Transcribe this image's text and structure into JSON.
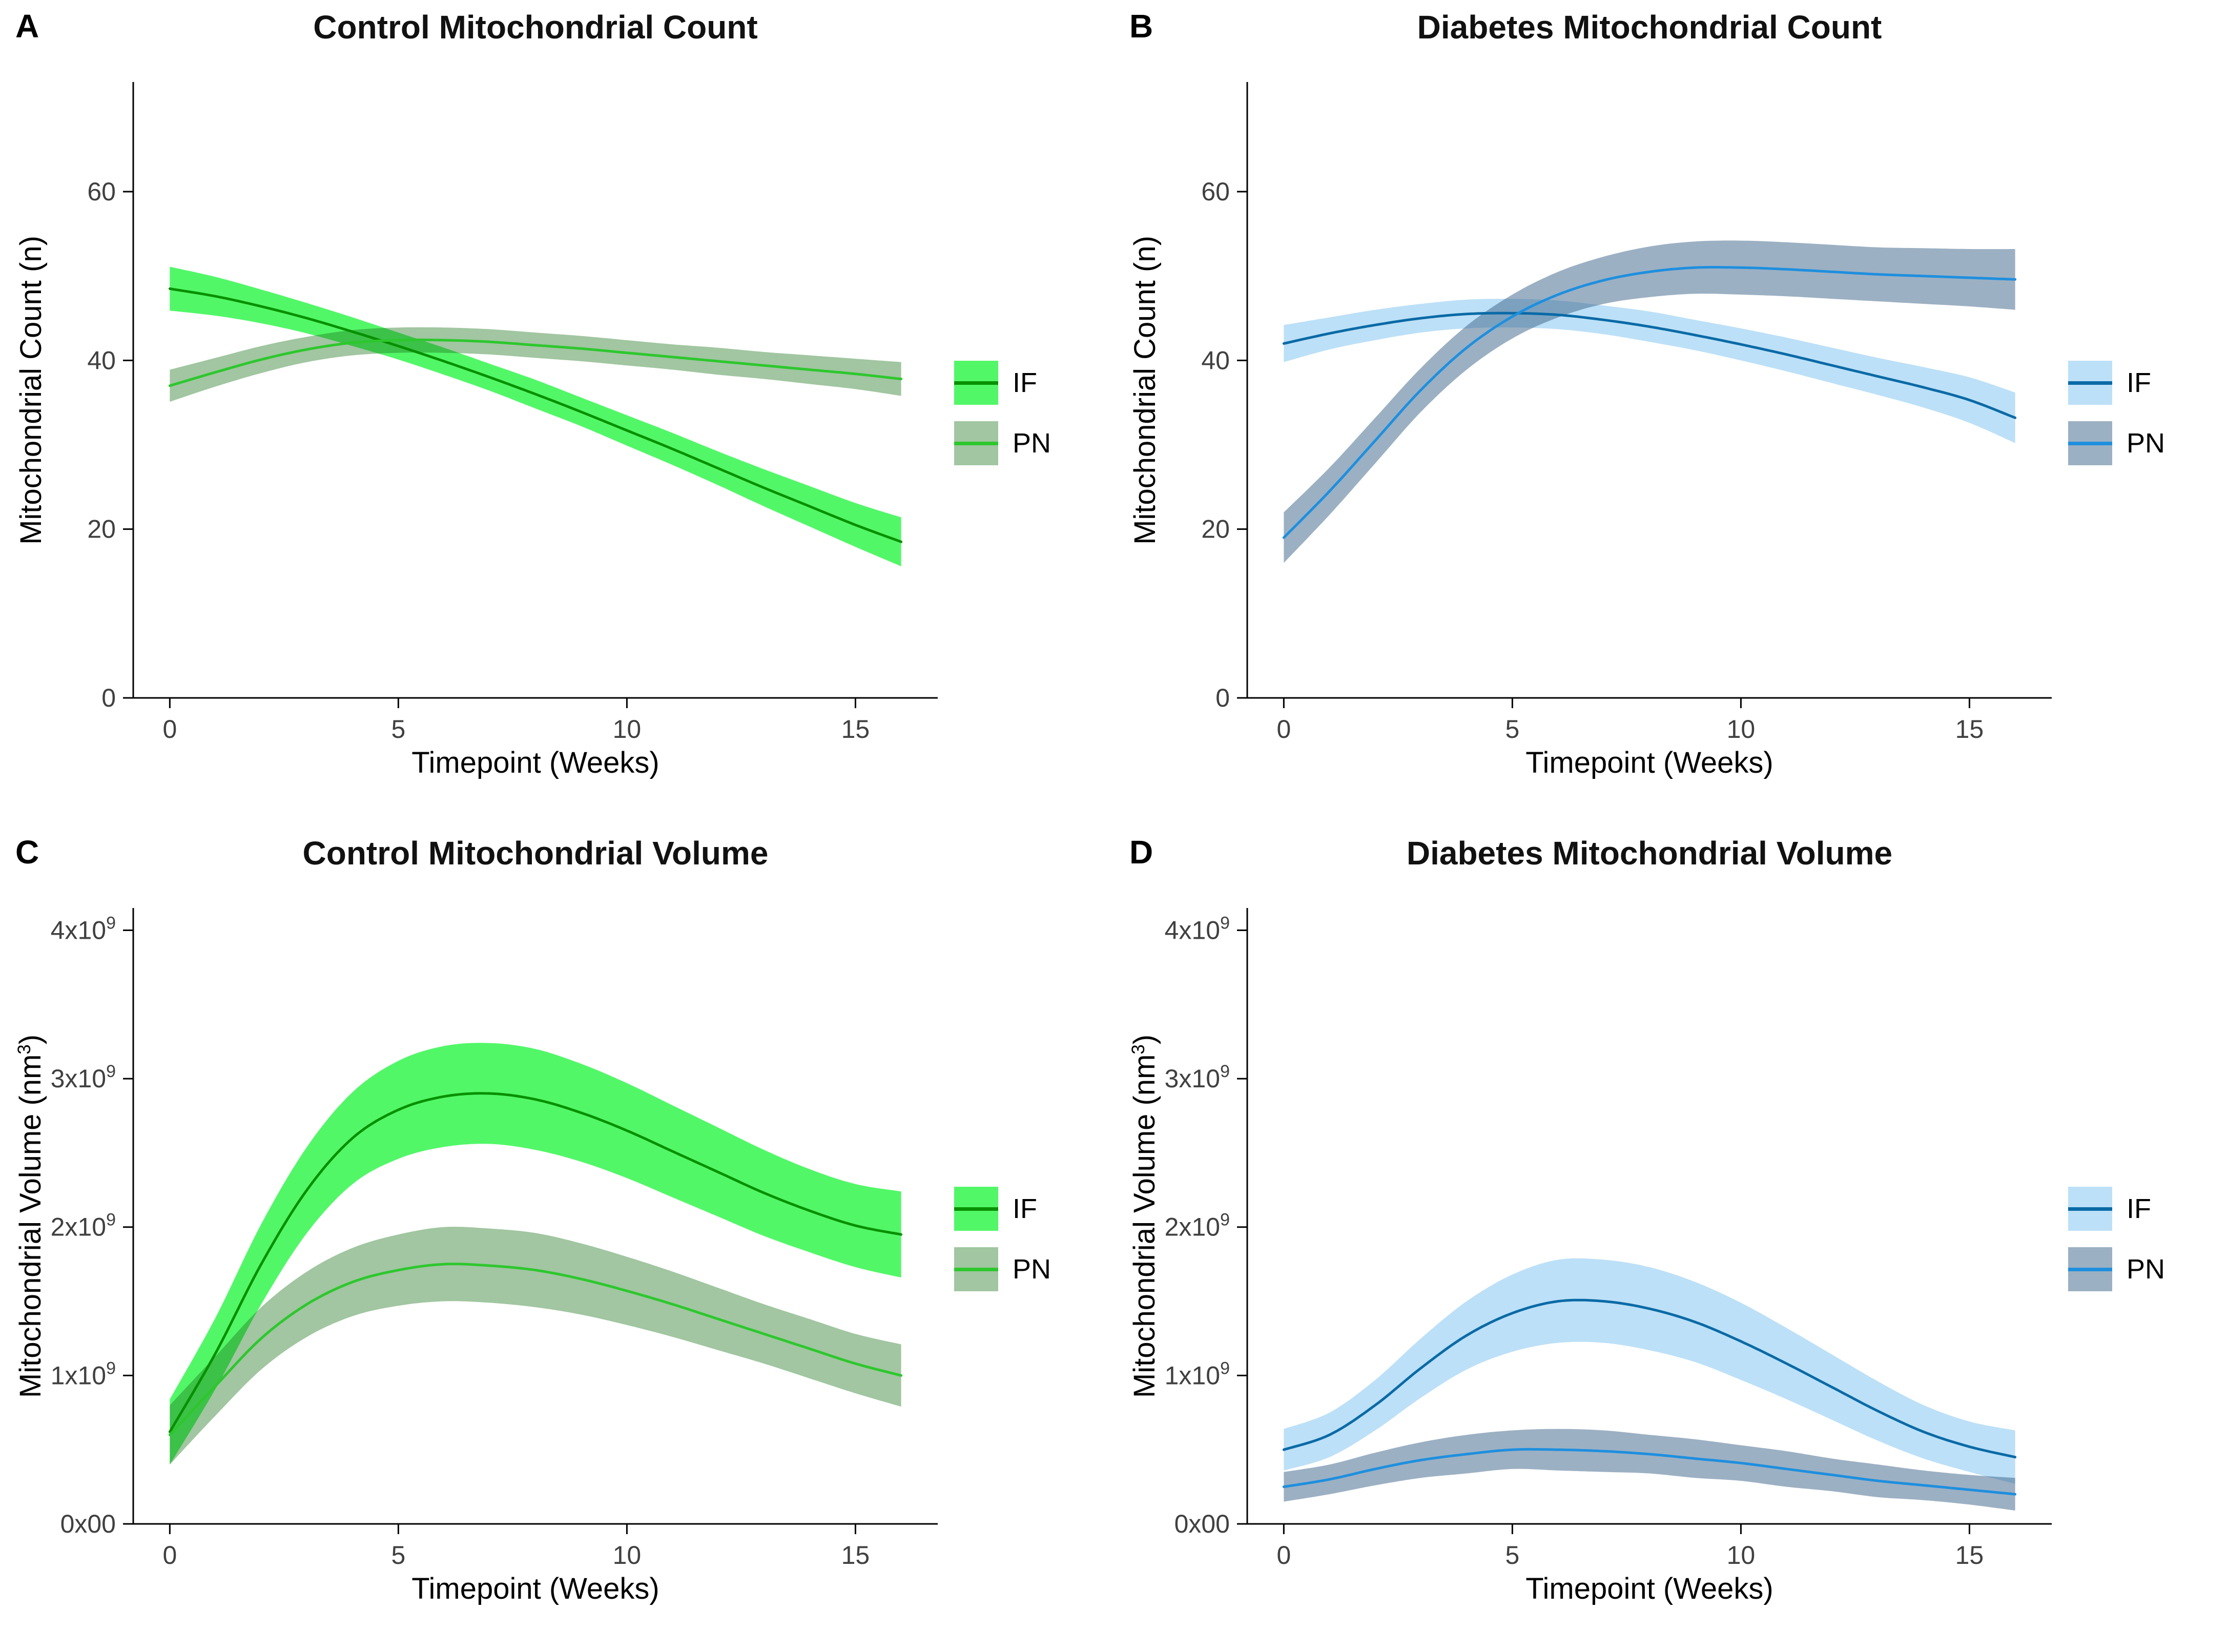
{
  "chart_data": [
    {
      "letter": "A",
      "title": "Control Mitochondrial Count",
      "type": "line",
      "xlabel": "Timepoint (Weeks)",
      "ylabel": {
        "pre": "Mitochondrial Count (n)",
        "sup": "",
        "post": ""
      },
      "xlim": [
        -0.8,
        16.8
      ],
      "ylim": [
        0,
        73
      ],
      "xticks": {
        "values": [
          0,
          5,
          10,
          15
        ],
        "labels": [
          "0",
          "5",
          "10",
          "15"
        ]
      },
      "yticks": {
        "values": [
          0,
          20,
          40,
          60
        ],
        "labels": [
          "0",
          "20",
          "40",
          "60"
        ]
      },
      "x": [
        0,
        1,
        2,
        3,
        4,
        5,
        6,
        7,
        8,
        9,
        10,
        11,
        12,
        13,
        14,
        15,
        16
      ],
      "series": [
        {
          "name": "IF",
          "line_color": "#089000",
          "band_color": "#52F768",
          "band_opacity": 1,
          "mean": [
            48.5,
            47.6,
            46.4,
            45.0,
            43.4,
            41.7,
            39.9,
            38.0,
            36.0,
            33.9,
            31.7,
            29.5,
            27.2,
            24.9,
            22.7,
            20.5,
            18.5
          ],
          "band": [
            2.6,
            2.3,
            2.0,
            1.8,
            1.7,
            1.6,
            1.6,
            1.6,
            1.7,
            1.7,
            1.8,
            1.9,
            2.0,
            2.2,
            2.4,
            2.6,
            2.9
          ]
        },
        {
          "name": "PN",
          "line_color": "#2DC72D",
          "band_color": "#1E781E",
          "band_opacity": 0.42,
          "mean": [
            37.0,
            38.6,
            40.1,
            41.3,
            42.1,
            42.4,
            42.4,
            42.2,
            41.8,
            41.4,
            40.9,
            40.4,
            39.9,
            39.4,
            38.9,
            38.4,
            37.8
          ],
          "band": [
            1.9,
            1.7,
            1.6,
            1.5,
            1.5,
            1.5,
            1.5,
            1.5,
            1.5,
            1.5,
            1.5,
            1.5,
            1.6,
            1.6,
            1.7,
            1.8,
            2.0
          ]
        }
      ]
    },
    {
      "letter": "B",
      "title": "Diabetes Mitochondrial Count",
      "type": "line",
      "xlabel": "Timepoint (Weeks)",
      "ylabel": {
        "pre": "Mitochondrial Count (n)",
        "sup": "",
        "post": ""
      },
      "xlim": [
        -0.8,
        16.8
      ],
      "ylim": [
        0,
        73
      ],
      "xticks": {
        "values": [
          0,
          5,
          10,
          15
        ],
        "labels": [
          "0",
          "5",
          "10",
          "15"
        ]
      },
      "yticks": {
        "values": [
          0,
          20,
          40,
          60
        ],
        "labels": [
          "0",
          "20",
          "40",
          "60"
        ]
      },
      "x": [
        0,
        1,
        2,
        3,
        4,
        5,
        6,
        7,
        8,
        9,
        10,
        11,
        12,
        13,
        14,
        15,
        16
      ],
      "series": [
        {
          "name": "IF",
          "line_color": "#0A6AA6",
          "band_color": "#BCE0F7",
          "band_opacity": 1,
          "mean": [
            42.0,
            43.2,
            44.2,
            45.0,
            45.5,
            45.6,
            45.4,
            44.8,
            44.0,
            43.0,
            41.9,
            40.7,
            39.4,
            38.1,
            36.8,
            35.3,
            33.2
          ],
          "band": [
            2.2,
            1.9,
            1.8,
            1.7,
            1.7,
            1.7,
            1.7,
            1.7,
            1.8,
            1.8,
            1.9,
            2.0,
            2.1,
            2.2,
            2.4,
            2.7,
            3.0
          ]
        },
        {
          "name": "PN",
          "line_color": "#1E8FDE",
          "band_color": "#3A6287",
          "band_opacity": 0.5,
          "mean": [
            19.0,
            24.5,
            30.5,
            36.5,
            41.5,
            45.2,
            47.8,
            49.5,
            50.5,
            51.0,
            51.0,
            50.8,
            50.5,
            50.2,
            50.0,
            49.8,
            49.6
          ],
          "band": [
            3.0,
            2.8,
            2.7,
            2.6,
            2.6,
            2.6,
            2.7,
            2.8,
            3.0,
            3.1,
            3.2,
            3.2,
            3.2,
            3.2,
            3.3,
            3.4,
            3.6
          ]
        }
      ]
    },
    {
      "letter": "C",
      "title": "Control Mitochondrial Volume",
      "type": "line",
      "xlabel": "Timepoint (Weeks)",
      "ylabel": {
        "pre": "Mitochondrial Volume (nm",
        "sup": "3",
        "post": ")"
      },
      "y_unit": "1e9 nm^3",
      "xlim": [
        -0.8,
        16.8
      ],
      "ylim": [
        0,
        4.15
      ],
      "xticks": {
        "values": [
          0,
          5,
          10,
          15
        ],
        "labels": [
          "0",
          "5",
          "10",
          "15"
        ]
      },
      "yticks": {
        "values": [
          0,
          1,
          2,
          3,
          4
        ],
        "labels": [
          "0x00",
          "1x10^9",
          "2x10^9",
          "3x10^9",
          "4x10^9"
        ]
      },
      "x": [
        0,
        1,
        2,
        3,
        4,
        5,
        6,
        7,
        8,
        9,
        10,
        11,
        12,
        13,
        14,
        15,
        16
      ],
      "series": [
        {
          "name": "IF",
          "line_color": "#089000",
          "band_color": "#52F768",
          "band_opacity": 1,
          "mean": [
            0.62,
            1.15,
            1.75,
            2.25,
            2.6,
            2.79,
            2.88,
            2.9,
            2.86,
            2.77,
            2.65,
            2.51,
            2.37,
            2.23,
            2.11,
            2.01,
            1.95
          ],
          "band": [
            0.22,
            0.24,
            0.27,
            0.29,
            0.31,
            0.33,
            0.34,
            0.34,
            0.34,
            0.33,
            0.32,
            0.31,
            0.3,
            0.29,
            0.28,
            0.28,
            0.29
          ]
        },
        {
          "name": "PN",
          "line_color": "#2DC72D",
          "band_color": "#1E781E",
          "band_opacity": 0.42,
          "mean": [
            0.6,
            0.93,
            1.25,
            1.48,
            1.63,
            1.71,
            1.75,
            1.74,
            1.71,
            1.65,
            1.57,
            1.48,
            1.38,
            1.28,
            1.18,
            1.08,
            1.0
          ],
          "band": [
            0.2,
            0.2,
            0.21,
            0.22,
            0.23,
            0.24,
            0.25,
            0.25,
            0.25,
            0.24,
            0.23,
            0.22,
            0.21,
            0.2,
            0.2,
            0.2,
            0.21
          ]
        }
      ]
    },
    {
      "letter": "D",
      "title": "Diabetes Mitochondrial Volume",
      "type": "line",
      "xlabel": "Timepoint (Weeks)",
      "ylabel": {
        "pre": "Mitochondrial Volume (nm",
        "sup": "3",
        "post": ")"
      },
      "y_unit": "1e9 nm^3",
      "xlim": [
        -0.8,
        16.8
      ],
      "ylim": [
        0,
        4.15
      ],
      "xticks": {
        "values": [
          0,
          5,
          10,
          15
        ],
        "labels": [
          "0",
          "5",
          "10",
          "15"
        ]
      },
      "yticks": {
        "values": [
          0,
          1,
          2,
          3,
          4
        ],
        "labels": [
          "0x00",
          "1x10^9",
          "2x10^9",
          "3x10^9",
          "4x10^9"
        ]
      },
      "x": [
        0,
        1,
        2,
        3,
        4,
        5,
        6,
        7,
        8,
        9,
        10,
        11,
        12,
        13,
        14,
        15,
        16
      ],
      "series": [
        {
          "name": "IF",
          "line_color": "#0A6AA6",
          "band_color": "#BCE0F7",
          "band_opacity": 1,
          "mean": [
            0.5,
            0.6,
            0.8,
            1.05,
            1.27,
            1.42,
            1.5,
            1.5,
            1.45,
            1.36,
            1.23,
            1.08,
            0.92,
            0.76,
            0.62,
            0.52,
            0.45
          ],
          "band": [
            0.14,
            0.15,
            0.17,
            0.2,
            0.23,
            0.26,
            0.28,
            0.28,
            0.28,
            0.27,
            0.26,
            0.24,
            0.22,
            0.2,
            0.18,
            0.17,
            0.18
          ]
        },
        {
          "name": "PN",
          "line_color": "#1E8FDE",
          "band_color": "#3A6287",
          "band_opacity": 0.5,
          "mean": [
            0.25,
            0.3,
            0.37,
            0.43,
            0.47,
            0.5,
            0.5,
            0.49,
            0.47,
            0.44,
            0.41,
            0.37,
            0.33,
            0.29,
            0.26,
            0.23,
            0.2
          ],
          "band": [
            0.1,
            0.1,
            0.11,
            0.12,
            0.13,
            0.13,
            0.14,
            0.14,
            0.13,
            0.13,
            0.12,
            0.12,
            0.11,
            0.11,
            0.1,
            0.1,
            0.11
          ]
        }
      ]
    }
  ]
}
